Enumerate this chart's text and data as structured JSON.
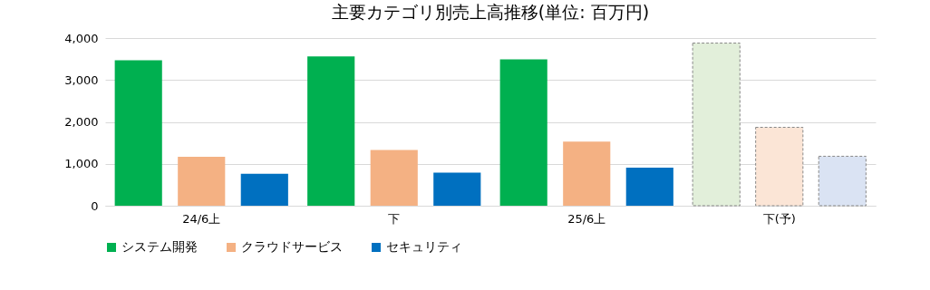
{
  "chart_data": {
    "type": "bar",
    "title": "主要カテゴリ別売上高推移(単位: 百万円)",
    "categories": [
      "24/6上",
      "下",
      "25/6上",
      "下(予)"
    ],
    "series": [
      {
        "name": "システム開発",
        "color": "#00b050",
        "colors": [
          "#00b050",
          "#00b050",
          "#00b050",
          "#e2efda"
        ],
        "values": [
          3470,
          3560,
          3490,
          3880
        ]
      },
      {
        "name": "クラウドサービス",
        "color": "#f4b183",
        "colors": [
          "#f4b183",
          "#f4b183",
          "#f4b183",
          "#fbe5d6"
        ],
        "values": [
          1170,
          1330,
          1530,
          1870
        ]
      },
      {
        "name": "セキュリティ",
        "color": "#0070c0",
        "colors": [
          "#0070c0",
          "#0070c0",
          "#0070c0",
          "#dae3f3"
        ],
        "values": [
          760,
          790,
          910,
          1180
        ]
      }
    ],
    "ylim": [
      0,
      4000
    ],
    "yticks": [
      {
        "value": 0,
        "label": "0"
      },
      {
        "value": 1000,
        "label": "1,000"
      },
      {
        "value": 2000,
        "label": "2,000"
      },
      {
        "value": 3000,
        "label": "3,000"
      },
      {
        "value": 4000,
        "label": "4,000"
      }
    ],
    "grid": "y",
    "legend": "bottom"
  }
}
